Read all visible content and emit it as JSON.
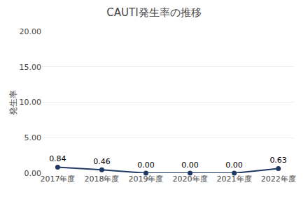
{
  "chart_data": {
    "type": "line",
    "title": "CAUTI発生率の推移",
    "ylabel": "発生率",
    "categories": [
      "2017年度",
      "2018年度",
      "2019年度",
      "2020年度",
      "2021年度",
      "2022年度"
    ],
    "values": [
      0.84,
      0.46,
      0.0,
      0.0,
      0.0,
      0.63
    ],
    "value_labels": [
      "0.84",
      "0.46",
      "0.00",
      "0.00",
      "0.00",
      "0.63"
    ],
    "data_labels": true,
    "color": "#1F3864",
    "marker": "circle",
    "ylim": [
      0,
      20
    ],
    "yticks": [
      {
        "value": 0,
        "label": "0.00"
      },
      {
        "value": 5,
        "label": "5.00"
      },
      {
        "value": 10,
        "label": "10.00"
      },
      {
        "value": 15,
        "label": "15.00"
      },
      {
        "value": 20,
        "label": "20.00"
      }
    ],
    "grid": true
  }
}
